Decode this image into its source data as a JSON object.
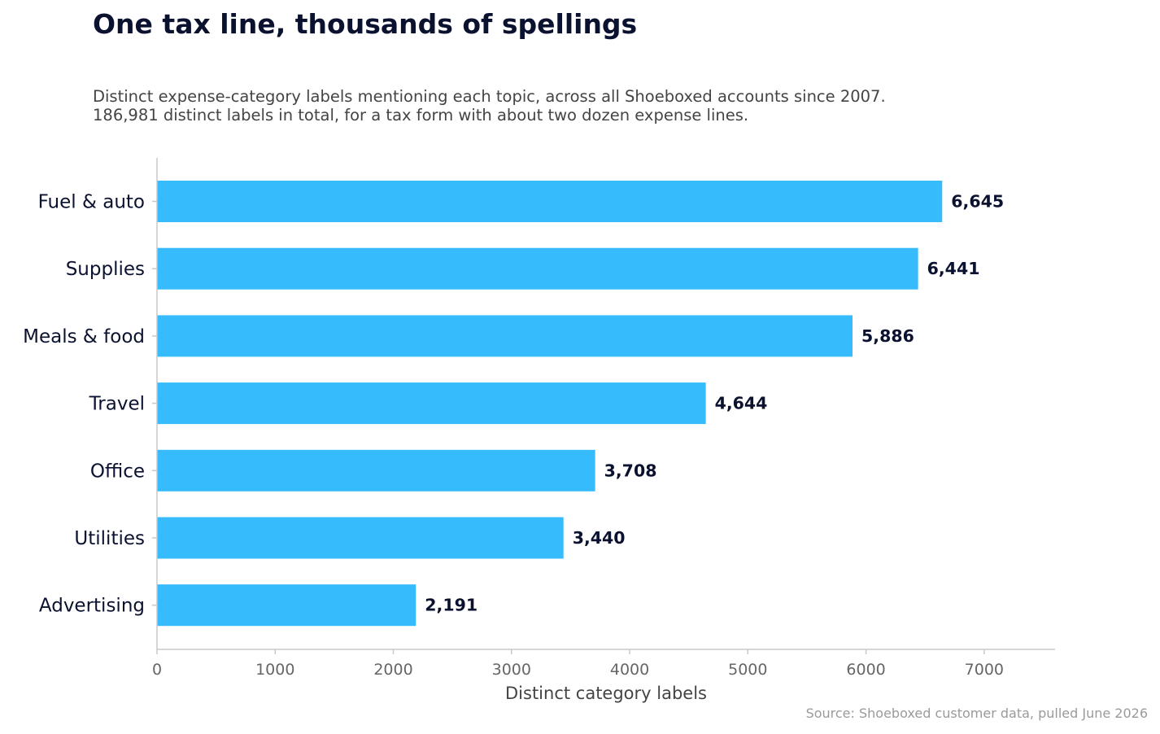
{
  "header": {
    "title": "One tax line, thousands of spellings",
    "subtitle_line1": "Distinct expense-category labels mentioning each topic, across all Shoeboxed accounts since 2007.",
    "subtitle_line2": "186,981 distinct labels in total, for a tax form with about two dozen expense lines."
  },
  "footer": {
    "source": "Source: Shoeboxed customer data, pulled June 2026"
  },
  "colors": {
    "bar": "#36bbfd",
    "title": "#0b1230",
    "axis": "#c8c8c8",
    "tick_label": "#666666",
    "subtitle": "#444444",
    "source": "#9a9a9a"
  },
  "chart_data": {
    "type": "bar",
    "orientation": "horizontal",
    "categories": [
      "Fuel & auto",
      "Supplies",
      "Meals & food",
      "Travel",
      "Office",
      "Utilities",
      "Advertising"
    ],
    "values": [
      6645,
      6441,
      5886,
      4644,
      3708,
      3440,
      2191
    ],
    "value_labels": [
      "6,645",
      "6,441",
      "5,886",
      "4,644",
      "3,708",
      "3,440",
      "2,191"
    ],
    "xlabel": "Distinct category labels",
    "ylabel": "",
    "xlim": [
      0,
      7600
    ],
    "xticks": [
      0,
      1000,
      2000,
      3000,
      4000,
      5000,
      6000,
      7000
    ],
    "grid": false,
    "legend": "none"
  }
}
